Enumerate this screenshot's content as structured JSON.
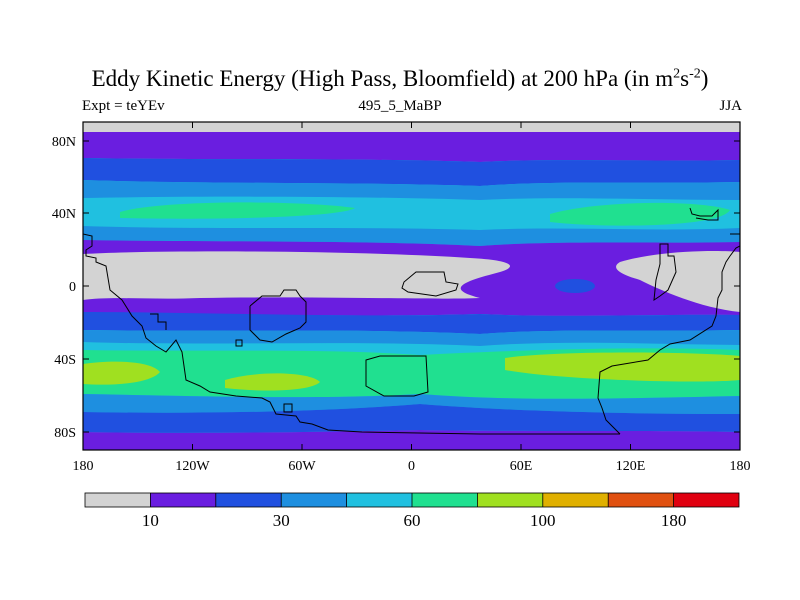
{
  "title": {
    "main": "Eddy Kinetic Energy (High Pass, Bloomfield) at 200 hPa (in m",
    "sup1": "2",
    "mid": "s",
    "sup2": "-2",
    "end": ")"
  },
  "subtitles": {
    "left": "Expt = teYEv",
    "center": "495_5_MaBP",
    "right": "JJA"
  },
  "axes": {
    "x_ticks": [
      "180",
      "120W",
      "60W",
      "0",
      "60E",
      "120E",
      "180"
    ],
    "y_ticks": [
      "80N",
      "40N",
      "0",
      "40S",
      "80S"
    ]
  },
  "colorbar": {
    "colors": [
      "#d3d3d3",
      "#6a1ee0",
      "#2050e0",
      "#1e8fe0",
      "#20c0e0",
      "#20e090",
      "#a0e020",
      "#e0b000",
      "#e05010",
      "#e00010"
    ],
    "labels": [
      "10",
      "30",
      "60",
      "100",
      "180"
    ]
  },
  "chart_data": {
    "type": "heatmap",
    "title": "Eddy Kinetic Energy (High Pass, Bloomfield) at 200 hPa (in m2s-2)",
    "xlabel": "",
    "ylabel": "",
    "xlim": [
      -180,
      180
    ],
    "ylim": [
      -90,
      90
    ],
    "x_ticks": [
      "180",
      "120W",
      "60W",
      "0",
      "60E",
      "120E",
      "180"
    ],
    "y_ticks": [
      "80N",
      "40N",
      "0",
      "40S",
      "80S"
    ],
    "color_levels": [
      "10",
      "30",
      "60",
      "100",
      "180"
    ],
    "colorscale": [
      "#d3d3d3",
      "#6a1ee0",
      "#2050e0",
      "#1e8fe0",
      "#20c0e0",
      "#20e090",
      "#a0e020",
      "#e0b000",
      "#e05010",
      "#e00010"
    ]
  }
}
